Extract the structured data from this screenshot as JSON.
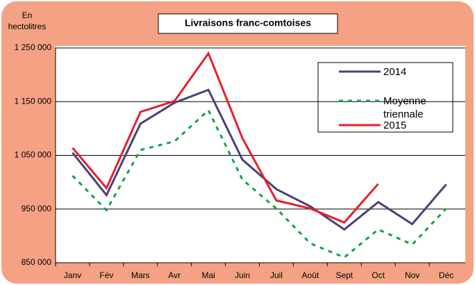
{
  "chart_data": {
    "type": "line",
    "title": "Livraisons franc-comtoises",
    "y_label": "En hectolitres",
    "categories": [
      "Janv",
      "Fév",
      "Mars",
      "Avr",
      "Mai",
      "Juin",
      "Juil",
      "Août",
      "Sept",
      "Oct",
      "Nov",
      "Déc"
    ],
    "series": [
      {
        "name": "2014",
        "color": "#4b3f7a",
        "style": "solid",
        "values": [
          1055000,
          976000,
          1109000,
          1148000,
          1172000,
          1042000,
          987000,
          955000,
          912000,
          963000,
          922000,
          996000
        ]
      },
      {
        "name": "Moyenne triennale",
        "color": "#10a34a",
        "style": "dotted",
        "values": [
          1012000,
          948000,
          1060000,
          1076000,
          1134000,
          1005000,
          951000,
          886000,
          860000,
          912000,
          884000,
          951000
        ]
      },
      {
        "name": "2015",
        "color": "#e3202a",
        "style": "solid",
        "values": [
          1064000,
          989000,
          1131000,
          1151000,
          1240000,
          1082000,
          966000,
          951000,
          925000,
          997000,
          null,
          null
        ]
      }
    ],
    "ylim": [
      850000,
      1250000
    ],
    "yticks": [
      {
        "value": 850000,
        "label": "850 000"
      },
      {
        "value": 950000,
        "label": "950 000"
      },
      {
        "value": 1050000,
        "label": "1 050 000"
      },
      {
        "value": 1150000,
        "label": "1 150 000"
      },
      {
        "value": 1250000,
        "label": "1 250 000"
      }
    ],
    "grid": true
  }
}
